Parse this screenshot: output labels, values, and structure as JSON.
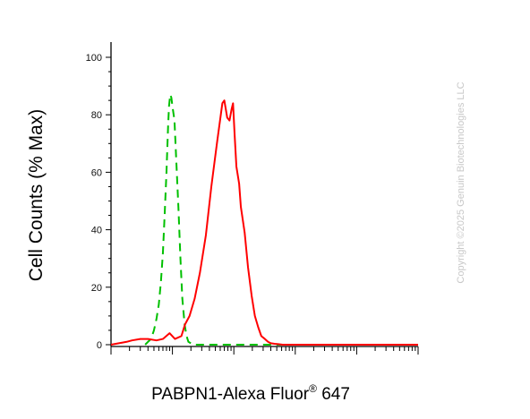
{
  "chart_data": {
    "type": "line",
    "title": "",
    "xlabel": "PABPN1-Alexa Fluor",
    "xlabel_superscript": "®",
    "xlabel_suffix": " 647",
    "ylabel": "Cell Counts (% Max)",
    "x_scale": "log",
    "xlim": [
      10,
      1000000
    ],
    "ylim": [
      0,
      100
    ],
    "y_ticks": [
      0,
      20,
      40,
      60,
      80,
      100
    ],
    "y_tick_labels": [
      "0",
      "20",
      "40",
      "60",
      "80",
      "100"
    ],
    "grid": false,
    "legend": "none",
    "series": [
      {
        "color": "#00c000",
        "style": "dashed",
        "x": [
          36,
          40,
          45,
          50,
          55,
          60,
          65,
          70,
          75,
          80,
          85,
          88,
          92,
          96,
          100,
          108,
          115,
          125,
          135,
          145,
          158,
          170,
          182,
          200,
          225,
          300,
          600,
          2000,
          10000,
          100000,
          1000000
        ],
        "y": [
          0,
          1,
          2,
          5,
          9,
          14,
          22,
          32,
          46,
          60,
          76,
          83,
          87,
          86,
          83,
          78,
          65,
          48,
          30,
          16,
          7,
          3,
          1,
          0.5,
          0,
          0,
          0,
          0,
          0,
          0,
          0
        ]
      },
      {
        "color": "#ff0000",
        "style": "solid",
        "x": [
          10,
          18,
          22,
          30,
          40,
          55,
          70,
          90,
          110,
          140,
          160,
          190,
          230,
          280,
          350,
          430,
          530,
          650,
          700,
          780,
          850,
          920,
          970,
          1030,
          1100,
          1220,
          1300,
          1500,
          1700,
          1950,
          2200,
          2500,
          2800,
          3200,
          3600,
          4000,
          4600,
          5300,
          6200,
          7500,
          10000,
          20000,
          50000,
          200000,
          1000000
        ],
        "y": [
          0,
          1,
          1.5,
          2,
          2,
          1.5,
          2,
          4,
          2,
          3,
          7,
          10,
          16,
          25,
          38,
          55,
          70,
          84,
          85,
          79,
          78,
          82,
          84,
          73,
          62,
          56,
          48,
          39,
          27,
          17,
          10,
          6,
          3,
          2,
          1,
          0.5,
          0.3,
          0.2,
          0,
          0,
          0,
          0,
          0,
          0,
          0
        ]
      }
    ]
  },
  "watermark": "Copyright ©2025 Genuin Biotechnologies LLC"
}
